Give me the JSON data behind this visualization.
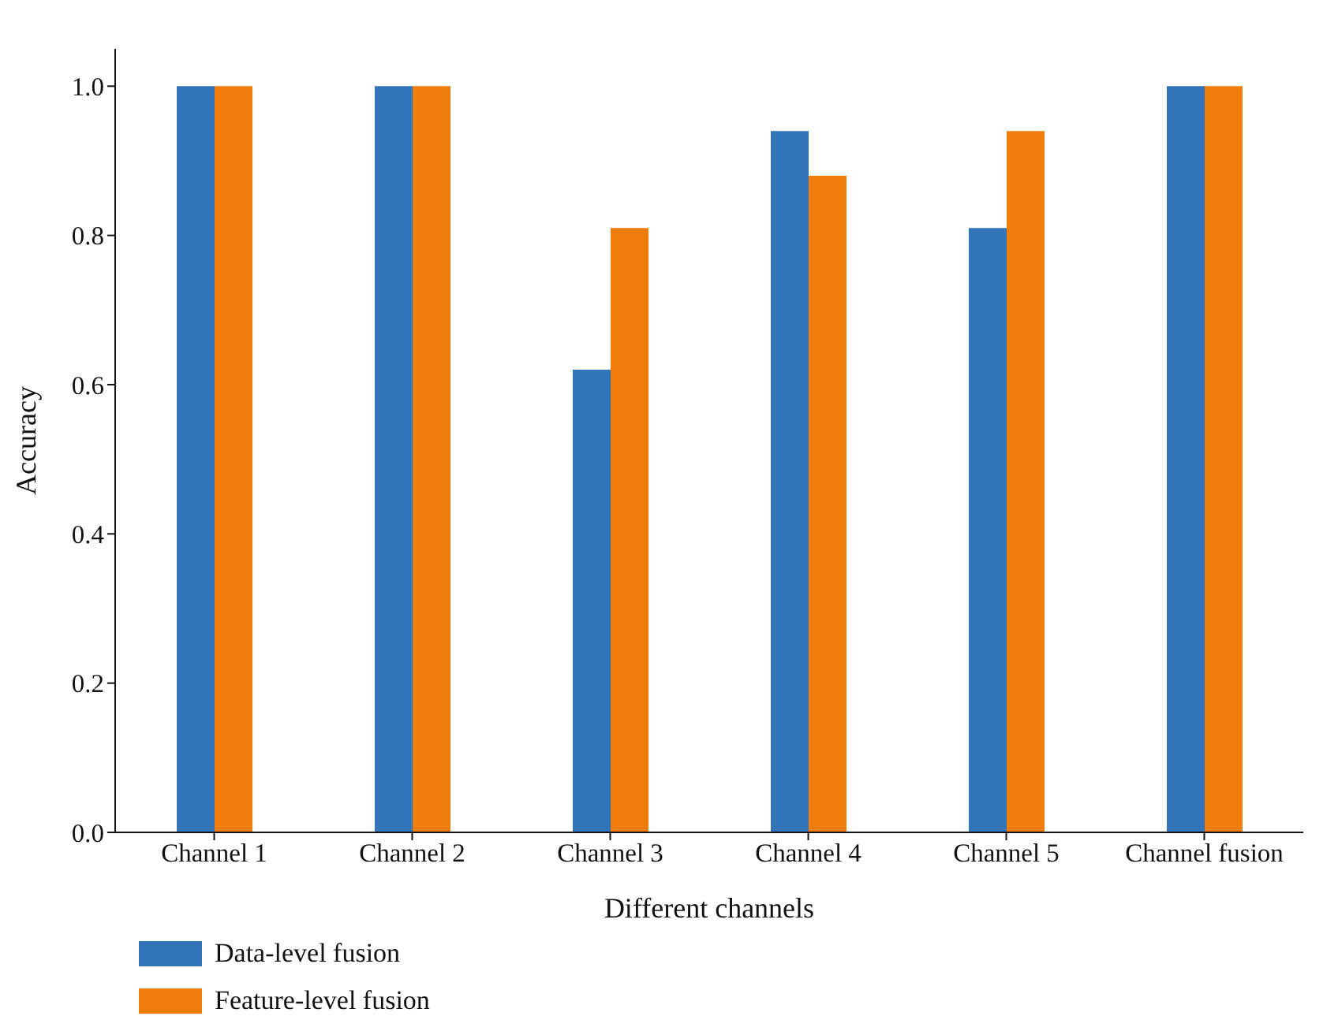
{
  "chart_data": {
    "type": "bar",
    "xlabel": "Different channels",
    "ylabel": "Accuracy",
    "categories": [
      "Channel 1",
      "Channel 2",
      "Channel 3",
      "Channel 4",
      "Channel 5",
      "Channel fusion"
    ],
    "series": [
      {
        "name": "Data-level fusion",
        "color": "#3274b8",
        "values": [
          1.0,
          1.0,
          0.62,
          0.94,
          0.81,
          1.0
        ]
      },
      {
        "name": "Feature-level fusion",
        "color": "#ef7d0c",
        "values": [
          1.0,
          1.0,
          0.81,
          0.88,
          0.94,
          1.0
        ]
      }
    ],
    "ylim": [
      0,
      1.05
    ],
    "yticks": [
      {
        "value": 0,
        "label": "0.0"
      },
      {
        "value": 0.2,
        "label": "0.2"
      },
      {
        "value": 0.4,
        "label": "0.4"
      },
      {
        "value": 0.6,
        "label": "0.6"
      },
      {
        "value": 0.8,
        "label": "0.8"
      },
      {
        "value": 1,
        "label": "1.0"
      }
    ],
    "grid": false,
    "legend": "bottom left"
  }
}
